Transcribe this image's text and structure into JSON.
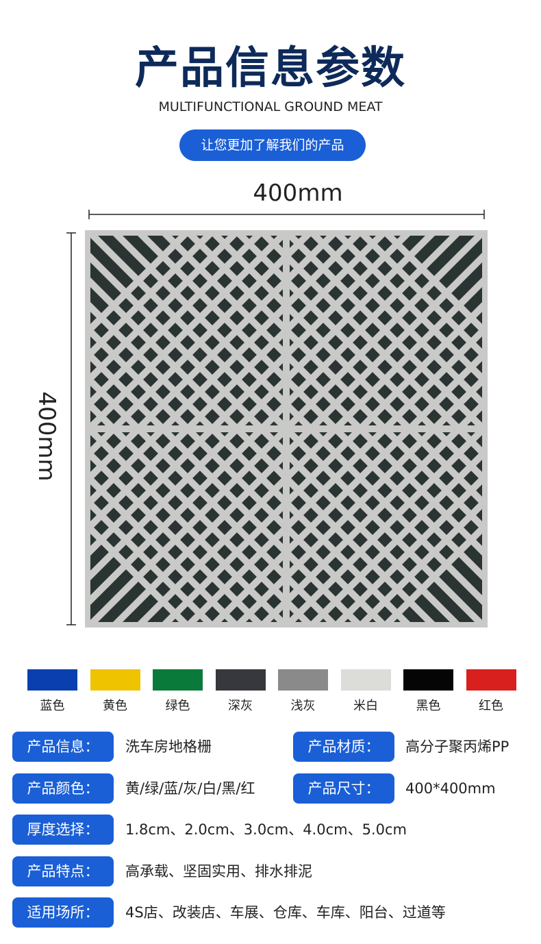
{
  "header": {
    "title": "产品信息参数",
    "subtitle": "MULTIFUNCTIONAL GROUND MEAT",
    "button": "让您更加了解我们的产品"
  },
  "dimensions": {
    "width": "400mm",
    "height": "400mm"
  },
  "swatches": [
    {
      "name": "蓝色",
      "color": "#0a3fb0"
    },
    {
      "name": "黄色",
      "color": "#efc300"
    },
    {
      "name": "绿色",
      "color": "#0a7a3a"
    },
    {
      "name": "深灰",
      "color": "#37383d"
    },
    {
      "name": "浅灰",
      "color": "#8a8a8a"
    },
    {
      "name": "米白",
      "color": "#dcdcd9"
    },
    {
      "name": "黑色",
      "color": "#050505"
    },
    {
      "name": "红色",
      "color": "#d8201e"
    }
  ],
  "info": [
    [
      {
        "label": "产品信息：",
        "value": "洗车房地格栅"
      },
      {
        "label": "产品材质：",
        "value": "高分子聚丙烯PP"
      }
    ],
    [
      {
        "label": "产品颜色：",
        "value": "黄/绿/蓝/灰/白/黑/红"
      },
      {
        "label": "产品尺寸：",
        "value": "400*400mm"
      }
    ],
    [
      {
        "label": "厚度选择：",
        "value": "1.8cm、2.0cm、3.0cm、4.0cm、5.0cm"
      }
    ],
    [
      {
        "label": "产品特点：",
        "value": "高承载、坚固实用、排水排泥"
      }
    ],
    [
      {
        "label": "适用场所：",
        "value": "4S店、改装店、车展、仓库、车库、阳台、过道等"
      }
    ]
  ]
}
